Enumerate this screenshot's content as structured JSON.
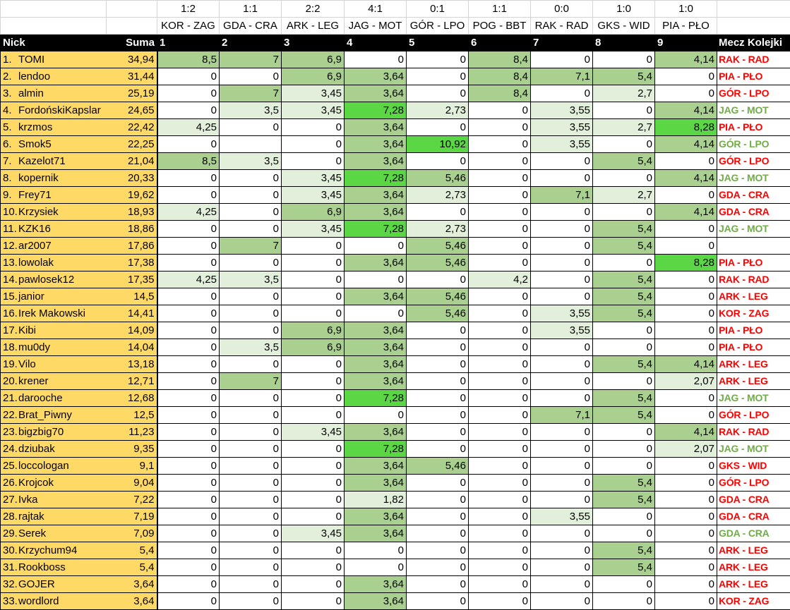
{
  "header": {
    "results": [
      "1:2",
      "1:1",
      "2:2",
      "4:1",
      "0:1",
      "1:1",
      "0:0",
      "1:0",
      "1:0"
    ],
    "matches": [
      "KOR - ZAG",
      "GDA - CRA",
      "ARK - LEG",
      "JAG - MOT",
      "GÓR - LPO",
      "POG - BBT",
      "RAK - RAD",
      "GKS - WID",
      "PIA - PŁO"
    ],
    "nick_label": "Nick",
    "suma_label": "Suma",
    "round_numbers": [
      "1",
      "2",
      "3",
      "4",
      "5",
      "6",
      "7",
      "8",
      "9"
    ],
    "mecz_label": "Mecz Kolejki"
  },
  "colors": {
    "name_bg": "#ffd966",
    "shade_light": "#e2efda",
    "shade_medium": "#a9d08e",
    "shade_bright": "#5bd645",
    "match_hit": "#70ad47",
    "match_miss": "#ff0000"
  },
  "rows": [
    {
      "rank": "1.",
      "nick": "TOMI",
      "suma": "34,94",
      "scores": [
        "8,5",
        "7",
        "6,9",
        "0",
        "0",
        "8,4",
        "0",
        "0",
        "4,14"
      ],
      "shade": [
        2,
        2,
        2,
        0,
        0,
        2,
        0,
        0,
        2
      ],
      "mecz": "RAK - RAD",
      "mecz_color": "#ff0000"
    },
    {
      "rank": "2.",
      "nick": "lendoo",
      "suma": "31,44",
      "scores": [
        "0",
        "0",
        "6,9",
        "3,64",
        "0",
        "8,4",
        "7,1",
        "5,4",
        "0"
      ],
      "shade": [
        0,
        0,
        2,
        2,
        0,
        2,
        2,
        2,
        0
      ],
      "mecz": "PIA - PŁO",
      "mecz_color": "#ff0000"
    },
    {
      "rank": "3.",
      "nick": "almin",
      "suma": "25,19",
      "scores": [
        "0",
        "7",
        "3,45",
        "3,64",
        "0",
        "8,4",
        "0",
        "2,7",
        "0"
      ],
      "shade": [
        0,
        2,
        1,
        2,
        0,
        2,
        0,
        1,
        0
      ],
      "mecz": "GÓR - LPO",
      "mecz_color": "#ff0000"
    },
    {
      "rank": "4.",
      "nick": "FordońskiKapslar",
      "suma": "24,65",
      "scores": [
        "0",
        "3,5",
        "3,45",
        "7,28",
        "2,73",
        "0",
        "3,55",
        "0",
        "4,14"
      ],
      "shade": [
        0,
        1,
        1,
        3,
        1,
        0,
        1,
        0,
        2
      ],
      "mecz": "JAG - MOT",
      "mecz_color": "#70ad47"
    },
    {
      "rank": "5.",
      "nick": "krzmos",
      "suma": "22,42",
      "scores": [
        "4,25",
        "0",
        "0",
        "3,64",
        "0",
        "0",
        "3,55",
        "2,7",
        "8,28"
      ],
      "shade": [
        1,
        0,
        0,
        2,
        0,
        0,
        1,
        1,
        3
      ],
      "mecz": "PIA - PŁO",
      "mecz_color": "#ff0000"
    },
    {
      "rank": "6.",
      "nick": "Smok5",
      "suma": "22,25",
      "scores": [
        "0",
        "",
        "0",
        "3,64",
        "10,92",
        "0",
        "3,55",
        "0",
        "4,14"
      ],
      "shade": [
        0,
        0,
        0,
        2,
        3,
        0,
        1,
        0,
        2
      ],
      "mecz": "GÓR - LPO",
      "mecz_color": "#70ad47"
    },
    {
      "rank": "7.",
      "nick": "Kazelot71",
      "suma": "21,04",
      "scores": [
        "8,5",
        "3,5",
        "0",
        "3,64",
        "0",
        "0",
        "0",
        "5,4",
        "0"
      ],
      "shade": [
        2,
        1,
        0,
        2,
        0,
        0,
        0,
        2,
        0
      ],
      "mecz": "GÓR - LPO",
      "mecz_color": "#ff0000"
    },
    {
      "rank": "8.",
      "nick": "kopernik",
      "suma": "20,33",
      "scores": [
        "0",
        "0",
        "3,45",
        "7,28",
        "5,46",
        "0",
        "0",
        "0",
        "4,14"
      ],
      "shade": [
        0,
        0,
        1,
        3,
        2,
        0,
        0,
        0,
        2
      ],
      "mecz": "JAG - MOT",
      "mecz_color": "#70ad47"
    },
    {
      "rank": "9.",
      "nick": "Frey71",
      "suma": "19,62",
      "scores": [
        "0",
        "0",
        "3,45",
        "3,64",
        "2,73",
        "0",
        "7,1",
        "2,7",
        "0"
      ],
      "shade": [
        0,
        0,
        1,
        2,
        1,
        0,
        2,
        1,
        0
      ],
      "mecz": "GDA - CRA",
      "mecz_color": "#ff0000"
    },
    {
      "rank": "10.",
      "nick": "Krzysiek",
      "suma": "18,93",
      "scores": [
        "4,25",
        "0",
        "6,9",
        "3,64",
        "0",
        "0",
        "0",
        "0",
        "4,14"
      ],
      "shade": [
        1,
        0,
        2,
        2,
        0,
        0,
        0,
        0,
        2
      ],
      "mecz": "GDA - CRA",
      "mecz_color": "#ff0000"
    },
    {
      "rank": "11.",
      "nick": "KZK16",
      "suma": "18,86",
      "scores": [
        "0",
        "0",
        "3,45",
        "7,28",
        "2,73",
        "0",
        "0",
        "5,4",
        "0"
      ],
      "shade": [
        0,
        0,
        1,
        3,
        1,
        0,
        0,
        2,
        0
      ],
      "mecz": "JAG - MOT",
      "mecz_color": "#70ad47"
    },
    {
      "rank": "12.",
      "nick": "ar2007",
      "suma": "17,86",
      "scores": [
        "0",
        "7",
        "0",
        "0",
        "5,46",
        "0",
        "0",
        "5,4",
        "0"
      ],
      "shade": [
        0,
        2,
        0,
        0,
        2,
        0,
        0,
        2,
        0
      ],
      "mecz": "",
      "mecz_color": "#ff0000"
    },
    {
      "rank": "13.",
      "nick": "lowolak",
      "suma": "17,38",
      "scores": [
        "0",
        "0",
        "0",
        "3,64",
        "5,46",
        "0",
        "0",
        "0",
        "8,28"
      ],
      "shade": [
        0,
        0,
        0,
        2,
        2,
        0,
        0,
        0,
        3
      ],
      "mecz": "PIA - PŁO",
      "mecz_color": "#ff0000"
    },
    {
      "rank": "14.",
      "nick": "pawlosek12",
      "suma": "17,35",
      "scores": [
        "4,25",
        "3,5",
        "0",
        "0",
        "0",
        "4,2",
        "0",
        "5,4",
        "0"
      ],
      "shade": [
        1,
        1,
        0,
        0,
        0,
        1,
        0,
        2,
        0
      ],
      "mecz": "RAK - RAD",
      "mecz_color": "#ff0000"
    },
    {
      "rank": "15.",
      "nick": "janior",
      "suma": "14,5",
      "scores": [
        "0",
        "0",
        "0",
        "3,64",
        "5,46",
        "0",
        "0",
        "5,4",
        "0"
      ],
      "shade": [
        0,
        0,
        0,
        2,
        2,
        0,
        0,
        2,
        0
      ],
      "mecz": "ARK - LEG",
      "mecz_color": "#ff0000"
    },
    {
      "rank": "16.",
      "nick": "Irek Makowski",
      "suma": "14,41",
      "scores": [
        "0",
        "0",
        "0",
        "0",
        "5,46",
        "0",
        "3,55",
        "5,4",
        "0"
      ],
      "shade": [
        0,
        0,
        0,
        0,
        2,
        0,
        1,
        2,
        0
      ],
      "mecz": "KOR - ZAG",
      "mecz_color": "#ff0000"
    },
    {
      "rank": "17.",
      "nick": "Kibi",
      "suma": "14,09",
      "scores": [
        "0",
        "0",
        "6,9",
        "3,64",
        "0",
        "0",
        "3,55",
        "0",
        "0"
      ],
      "shade": [
        0,
        0,
        2,
        2,
        0,
        0,
        1,
        0,
        0
      ],
      "mecz": "PIA - PŁO",
      "mecz_color": "#ff0000"
    },
    {
      "rank": "18.",
      "nick": "mu0dy",
      "suma": "14,04",
      "scores": [
        "0",
        "3,5",
        "6,9",
        "3,64",
        "0",
        "0",
        "0",
        "0",
        "0"
      ],
      "shade": [
        0,
        1,
        2,
        2,
        0,
        0,
        0,
        0,
        0
      ],
      "mecz": "PIA - PŁO",
      "mecz_color": "#ff0000"
    },
    {
      "rank": "19.",
      "nick": "Vilo",
      "suma": "13,18",
      "scores": [
        "0",
        "0",
        "0",
        "3,64",
        "0",
        "0",
        "0",
        "5,4",
        "4,14"
      ],
      "shade": [
        0,
        0,
        0,
        2,
        0,
        0,
        0,
        2,
        2
      ],
      "mecz": "ARK - LEG",
      "mecz_color": "#ff0000"
    },
    {
      "rank": "20.",
      "nick": "krener",
      "suma": "12,71",
      "scores": [
        "0",
        "7",
        "0",
        "3,64",
        "0",
        "0",
        "0",
        "0",
        "2,07"
      ],
      "shade": [
        0,
        2,
        0,
        2,
        0,
        0,
        0,
        0,
        1
      ],
      "mecz": "ARK - LEG",
      "mecz_color": "#ff0000"
    },
    {
      "rank": "21.",
      "nick": "darooche",
      "suma": "12,68",
      "scores": [
        "0",
        "0",
        "0",
        "7,28",
        "0",
        "0",
        "0",
        "5,4",
        "0"
      ],
      "shade": [
        0,
        0,
        0,
        3,
        0,
        0,
        0,
        2,
        0
      ],
      "mecz": "JAG - MOT",
      "mecz_color": "#70ad47"
    },
    {
      "rank": "22.",
      "nick": "Brat_Piwny",
      "suma": "12,5",
      "scores": [
        "0",
        "0",
        "0",
        "0",
        "0",
        "0",
        "7,1",
        "5,4",
        "0"
      ],
      "shade": [
        0,
        0,
        0,
        0,
        0,
        0,
        2,
        2,
        0
      ],
      "mecz": "GÓR - LPO",
      "mecz_color": "#ff0000"
    },
    {
      "rank": "23.",
      "nick": "bigzbig70",
      "suma": "11,23",
      "scores": [
        "0",
        "0",
        "3,45",
        "3,64",
        "0",
        "0",
        "0",
        "0",
        "4,14"
      ],
      "shade": [
        0,
        0,
        1,
        2,
        0,
        0,
        0,
        0,
        2
      ],
      "mecz": "RAK - RAD",
      "mecz_color": "#ff0000"
    },
    {
      "rank": "24.",
      "nick": "dziubak",
      "suma": "9,35",
      "scores": [
        "0",
        "0",
        "0",
        "7,28",
        "0",
        "0",
        "0",
        "0",
        "2,07"
      ],
      "shade": [
        0,
        0,
        0,
        3,
        0,
        0,
        0,
        0,
        1
      ],
      "mecz": "JAG - MOT",
      "mecz_color": "#70ad47"
    },
    {
      "rank": "25.",
      "nick": "loccologan",
      "suma": "9,1",
      "scores": [
        "0",
        "0",
        "0",
        "3,64",
        "5,46",
        "0",
        "0",
        "0",
        "0"
      ],
      "shade": [
        0,
        0,
        0,
        2,
        2,
        0,
        0,
        0,
        0
      ],
      "mecz": "GKS - WID",
      "mecz_color": "#ff0000"
    },
    {
      "rank": "26.",
      "nick": "Krojcok",
      "suma": "9,04",
      "scores": [
        "0",
        "0",
        "0",
        "3,64",
        "0",
        "0",
        "0",
        "5,4",
        "0"
      ],
      "shade": [
        0,
        0,
        0,
        2,
        0,
        0,
        0,
        2,
        0
      ],
      "mecz": "GÓR - LPO",
      "mecz_color": "#ff0000"
    },
    {
      "rank": "27.",
      "nick": "Ivka",
      "suma": "7,22",
      "scores": [
        "0",
        "0",
        "0",
        "1,82",
        "0",
        "0",
        "0",
        "5,4",
        "0"
      ],
      "shade": [
        0,
        0,
        0,
        1,
        0,
        0,
        0,
        2,
        0
      ],
      "mecz": "GDA - CRA",
      "mecz_color": "#ff0000"
    },
    {
      "rank": "28.",
      "nick": "rajtak",
      "suma": "7,19",
      "scores": [
        "0",
        "0",
        "0",
        "3,64",
        "0",
        "0",
        "3,55",
        "0",
        "0"
      ],
      "shade": [
        0,
        0,
        0,
        2,
        0,
        0,
        1,
        0,
        0
      ],
      "mecz": "GDA - CRA",
      "mecz_color": "#ff0000"
    },
    {
      "rank": "29.",
      "nick": "Serek",
      "suma": "7,09",
      "scores": [
        "0",
        "0",
        "3,45",
        "3,64",
        "0",
        "0",
        "0",
        "0",
        "0"
      ],
      "shade": [
        0,
        0,
        1,
        2,
        0,
        0,
        0,
        0,
        0
      ],
      "mecz": "GDA - CRA",
      "mecz_color": "#70ad47"
    },
    {
      "rank": "30.",
      "nick": "Krzychum94",
      "suma": "5,4",
      "scores": [
        "0",
        "0",
        "0",
        "0",
        "0",
        "0",
        "0",
        "5,4",
        "0"
      ],
      "shade": [
        0,
        0,
        0,
        0,
        0,
        0,
        0,
        2,
        0
      ],
      "mecz": "ARK - LEG",
      "mecz_color": "#ff0000"
    },
    {
      "rank": "31.",
      "nick": "Rookboss",
      "suma": "5,4",
      "scores": [
        "0",
        "0",
        "0",
        "0",
        "0",
        "0",
        "0",
        "5,4",
        "0"
      ],
      "shade": [
        0,
        0,
        0,
        0,
        0,
        0,
        0,
        2,
        0
      ],
      "mecz": "ARK - LEG",
      "mecz_color": "#ff0000"
    },
    {
      "rank": "32.",
      "nick": "GOJER",
      "suma": "3,64",
      "scores": [
        "0",
        "0",
        "0",
        "3,64",
        "0",
        "0",
        "0",
        "0",
        "0"
      ],
      "shade": [
        0,
        0,
        0,
        2,
        0,
        0,
        0,
        0,
        0
      ],
      "mecz": "ARK - LEG",
      "mecz_color": "#ff0000"
    },
    {
      "rank": "33.",
      "nick": "wordlord",
      "suma": "3,64",
      "scores": [
        "0",
        "0",
        "0",
        "3,64",
        "0",
        "0",
        "0",
        "0",
        "0"
      ],
      "shade": [
        0,
        0,
        0,
        2,
        0,
        0,
        0,
        0,
        0
      ],
      "mecz": "KOR - ZAG",
      "mecz_color": "#ff0000"
    }
  ]
}
